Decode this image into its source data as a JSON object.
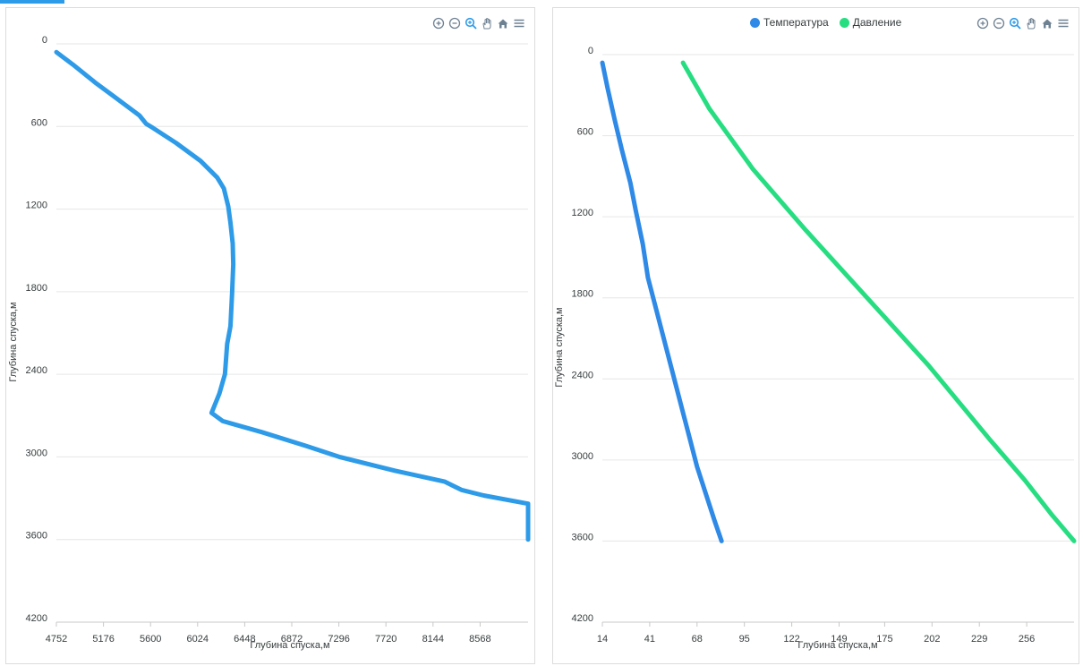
{
  "toolbar_icons": [
    "zoom-in-icon",
    "zoom-out-icon",
    "selection-zoom-icon",
    "pan-hand-icon",
    "home-icon",
    "menu-icon"
  ],
  "chart_data": [
    {
      "type": "line",
      "title": "",
      "xlabel": "Глубина спуска,м",
      "ylabel": "Глубина спуска,м",
      "xlim": [
        4752,
        9000
      ],
      "ylim": [
        0,
        4200
      ],
      "y_reversed": true,
      "x_ticks": [
        "4752",
        "5176",
        "5600",
        "6024",
        "6448",
        "6872",
        "7296",
        "7720",
        "8144",
        "8568"
      ],
      "y_ticks": [
        "0",
        "600",
        "1200",
        "1800",
        "2400",
        "3000",
        "3600",
        "4200"
      ],
      "grid": true,
      "color": "#2e9be8",
      "series": [
        {
          "x": [
            4752,
            4900,
            5100,
            5350,
            5500,
            5560,
            5620,
            5830,
            6050,
            6200,
            6260,
            6300,
            6320,
            6340,
            6345,
            6335,
            6320,
            6290,
            6270,
            6220,
            6150,
            6250,
            6600,
            7000,
            7300,
            7800,
            8250,
            8400,
            8600,
            9000,
            9000
          ],
          "y": [
            60,
            150,
            280,
            430,
            520,
            580,
            610,
            720,
            850,
            970,
            1050,
            1180,
            1300,
            1450,
            1600,
            1800,
            2050,
            2180,
            2400,
            2540,
            2680,
            2740,
            2820,
            2920,
            3000,
            3100,
            3180,
            3240,
            3280,
            3340,
            3600
          ]
        }
      ]
    },
    {
      "type": "line",
      "title": "",
      "xlabel": "Глубина спуска,м",
      "ylabel": "Глубина спуска,м",
      "xlim": [
        14,
        283
      ],
      "ylim": [
        0,
        4200
      ],
      "y_reversed": true,
      "x_ticks": [
        "14",
        "41",
        "68",
        "95",
        "122",
        "149",
        "175",
        "202",
        "229",
        "256"
      ],
      "y_ticks": [
        "0",
        "600",
        "1200",
        "1800",
        "2400",
        "3000",
        "3600",
        "4200"
      ],
      "grid": true,
      "legend": "top-center",
      "series": [
        {
          "name": "Температура",
          "color": "#2e8ae6",
          "x": [
            14,
            17,
            21,
            25,
            30,
            33,
            37,
            40,
            45,
            50,
            55,
            60,
            64,
            68,
            73,
            78,
            82
          ],
          "y": [
            60,
            250,
            480,
            700,
            950,
            1150,
            1400,
            1650,
            1900,
            2150,
            2400,
            2650,
            2850,
            3050,
            3250,
            3450,
            3600
          ]
        },
        {
          "name": "Давление",
          "color": "#26de81",
          "x": [
            60,
            75,
            100,
            130,
            165,
            200,
            235,
            255,
            270,
            283
          ],
          "y": [
            60,
            400,
            850,
            1300,
            1800,
            2300,
            2850,
            3150,
            3400,
            3600
          ]
        }
      ]
    }
  ]
}
